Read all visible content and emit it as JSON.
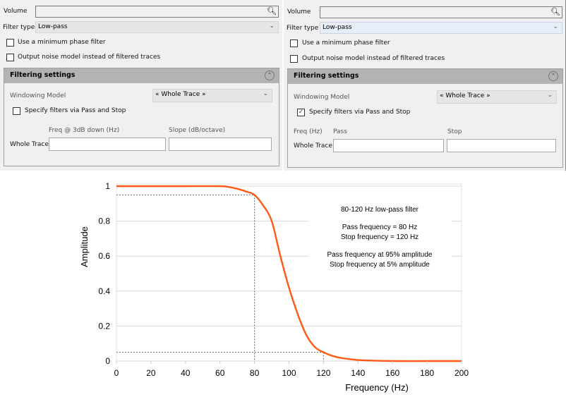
{
  "left_panel": {
    "volume_label": "Volume",
    "volume_value": "",
    "filter_type_label": "Filter type",
    "filter_type_value": "Low-pass",
    "min_phase_label": "Use a minimum phase filter",
    "min_phase_checked": false,
    "noise_model_label": "Output noise model instead of filtered traces",
    "noise_model_checked": false,
    "group_title": "Filtering settings",
    "windowing_label": "Windowing Model",
    "windowing_value": "« Whole Trace »",
    "pass_stop_label": "Specify filters via Pass and Stop",
    "pass_stop_checked": false,
    "col1_header": "Freq @ 3dB down (Hz)",
    "col2_header": "Slope (dB/octave)",
    "row_label": "Whole Trace",
    "col1_value": "",
    "col2_value": ""
  },
  "right_panel": {
    "volume_label": "Volume",
    "volume_value": "",
    "filter_type_label": "Filter type",
    "filter_type_value": "Low-pass",
    "min_phase_label": "Use a minimum phase filter",
    "min_phase_checked": false,
    "noise_model_label": "Output noise model instead of filtered traces",
    "noise_model_checked": false,
    "group_title": "Filtering settings",
    "windowing_label": "Windowing Model",
    "windowing_value": "« Whole Trace »",
    "pass_stop_label": "Specify filters via Pass and Stop",
    "pass_stop_checked": true,
    "freq_label": "Freq (Hz)",
    "col1_header": "Pass",
    "col2_header": "Stop",
    "row_label": "Whole Trace",
    "col1_value": "",
    "col2_value": ""
  },
  "icons": {
    "search": "search-icon",
    "dropdown": "chevron-down-icon",
    "collapse": "double-chevron-up-icon",
    "check": "✓"
  },
  "chart_data": {
    "type": "line",
    "xlabel": "Frequency (Hz)",
    "ylabel": "Amplitude",
    "xlim": [
      0,
      200
    ],
    "ylim": [
      0,
      1
    ],
    "x_ticks": [
      "0",
      "20",
      "40",
      "60",
      "80",
      "100",
      "120",
      "140",
      "160",
      "180",
      "200"
    ],
    "y_ticks": [
      "0",
      "0.2",
      "0.4",
      "0.6",
      "0.8",
      "1"
    ],
    "grid": "horizontal",
    "line_color": "#ff5a14",
    "series": [
      {
        "x": [
          0,
          20,
          40,
          60,
          65,
          70,
          75,
          80,
          85,
          90,
          95,
          100,
          105,
          110,
          115,
          120,
          125,
          130,
          140,
          150,
          160,
          180,
          200
        ],
        "y": [
          1,
          1,
          1,
          1,
          0.995,
          0.985,
          0.97,
          0.95,
          0.89,
          0.8,
          0.6,
          0.42,
          0.27,
          0.15,
          0.08,
          0.05,
          0.03,
          0.018,
          0.006,
          0.002,
          0,
          0,
          0
        ]
      }
    ],
    "reference_lines": {
      "pass": {
        "x": 80,
        "y": 0.95
      },
      "stop": {
        "x": 120,
        "y": 0.05
      }
    },
    "annotations": [
      "80-120 Hz low-pass filter",
      "Pass frequency = 80 Hz",
      "Stop frequency = 120 Hz",
      "Pass frequency at 95% amplitude",
      "Stop frequency at 5% amplitude"
    ]
  }
}
